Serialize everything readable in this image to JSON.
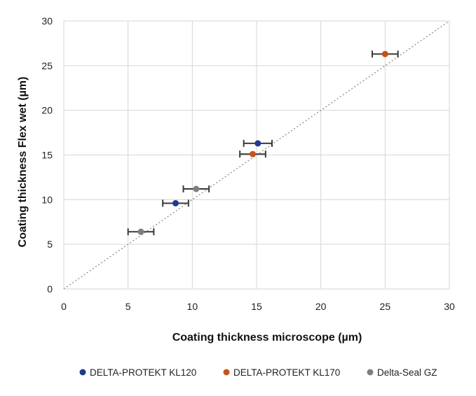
{
  "chart_data": {
    "type": "scatter",
    "title": "",
    "xlabel": "Coating thickness microscope (µm)",
    "ylabel": "Coating thickness Flex wet (µm)",
    "xlim": [
      0,
      30
    ],
    "ylim": [
      0,
      30
    ],
    "xticks": [
      0,
      5,
      10,
      15,
      20,
      25,
      30
    ],
    "yticks": [
      0,
      5,
      10,
      15,
      20,
      25,
      30
    ],
    "grid": true,
    "reference_line": {
      "type": "y=x",
      "style": "dotted"
    },
    "legend_position": "bottom",
    "series": [
      {
        "name": "DELTA-PROTEKT KL120",
        "color": "#1f3b8f",
        "points": [
          {
            "x": 8.7,
            "y": 9.6,
            "xerr": 1.0
          },
          {
            "x": 15.1,
            "y": 16.3,
            "xerr": 1.1
          }
        ]
      },
      {
        "name": "DELTA-PROTEKT KL170",
        "color": "#c5541a",
        "points": [
          {
            "x": 14.7,
            "y": 15.1,
            "xerr": 1.0
          },
          {
            "x": 25.0,
            "y": 26.3,
            "xerr": 1.0
          }
        ]
      },
      {
        "name": "Delta-Seal GZ",
        "color": "#7f7f7f",
        "points": [
          {
            "x": 6.0,
            "y": 6.4,
            "xerr": 1.0
          },
          {
            "x": 10.3,
            "y": 11.2,
            "xerr": 1.0
          }
        ]
      }
    ]
  }
}
